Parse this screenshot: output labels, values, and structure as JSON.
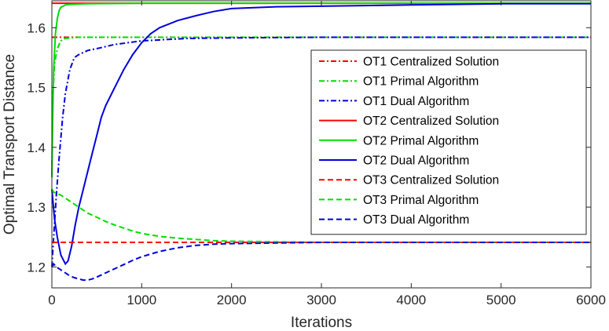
{
  "chart_data": {
    "type": "line",
    "title": "",
    "xlabel": "Iterations",
    "ylabel": "Optimal Transport Distance",
    "xlim": [
      0,
      6000
    ],
    "ylim": [
      1.165,
      1.645
    ],
    "xticks": [
      0,
      1000,
      2000,
      3000,
      4000,
      5000,
      6000
    ],
    "xtick_labels": [
      "0",
      "1000",
      "2000",
      "3000",
      "4000",
      "5000",
      "6000"
    ],
    "yticks": [
      1.2,
      1.3,
      1.4,
      1.5,
      1.6
    ],
    "ytick_labels": [
      "1.2",
      "1.3",
      "1.4",
      "1.5",
      "1.6"
    ],
    "grid": false,
    "legend_position": "right",
    "series": [
      {
        "name": "OT1 Centralized Solution",
        "color": "#ff0000",
        "dash": "dashdot",
        "x": [
          0,
          6000
        ],
        "y": [
          1.584,
          1.584
        ]
      },
      {
        "name": "OT1 Primal Algorithm",
        "color": "#00dd00",
        "dash": "dashdot",
        "x": [
          0,
          10,
          30,
          60,
          100,
          150,
          200,
          300,
          500,
          1000,
          2000,
          4000,
          6000
        ],
        "y": [
          1.35,
          1.48,
          1.54,
          1.565,
          1.578,
          1.582,
          1.583,
          1.584,
          1.584,
          1.584,
          1.584,
          1.584,
          1.584
        ]
      },
      {
        "name": "OT1 Dual Algorithm",
        "color": "#0000dd",
        "dash": "dashdot",
        "x": [
          0,
          20,
          50,
          80,
          120,
          150,
          200,
          250,
          300,
          400,
          500,
          700,
          1000,
          1500,
          2000,
          3000,
          4000,
          6000
        ],
        "y": [
          1.2,
          1.25,
          1.32,
          1.38,
          1.45,
          1.49,
          1.53,
          1.55,
          1.555,
          1.562,
          1.565,
          1.572,
          1.578,
          1.582,
          1.583,
          1.584,
          1.584,
          1.584
        ]
      },
      {
        "name": "OT2 Centralized Solution",
        "color": "#ff0000",
        "dash": "solid",
        "x": [
          0,
          6000
        ],
        "y": [
          1.641,
          1.641
        ]
      },
      {
        "name": "OT2 Primal Algorithm",
        "color": "#00dd00",
        "dash": "solid",
        "x": [
          0,
          10,
          20,
          40,
          60,
          80,
          100,
          150,
          200,
          400,
          1000,
          2000,
          4000,
          6000
        ],
        "y": [
          1.35,
          1.45,
          1.53,
          1.59,
          1.615,
          1.628,
          1.634,
          1.638,
          1.639,
          1.64,
          1.641,
          1.641,
          1.641,
          1.641
        ]
      },
      {
        "name": "OT2 Dual Algorithm",
        "color": "#0000dd",
        "dash": "solid",
        "x": [
          0,
          30,
          60,
          100,
          150,
          180,
          220,
          260,
          300,
          350,
          400,
          450,
          500,
          550,
          600,
          700,
          800,
          900,
          1000,
          1100,
          1200,
          1400,
          1600,
          1800,
          2000,
          2500,
          3000,
          4000,
          5000,
          6000
        ],
        "y": [
          1.33,
          1.28,
          1.25,
          1.22,
          1.205,
          1.21,
          1.235,
          1.27,
          1.3,
          1.33,
          1.36,
          1.39,
          1.42,
          1.45,
          1.47,
          1.5,
          1.53,
          1.555,
          1.575,
          1.59,
          1.6,
          1.612,
          1.62,
          1.627,
          1.632,
          1.635,
          1.636,
          1.638,
          1.64,
          1.64
        ]
      },
      {
        "name": "OT3 Centralized Solution",
        "color": "#ff0000",
        "dash": "dashed",
        "x": [
          0,
          6000
        ],
        "y": [
          1.241,
          1.241
        ]
      },
      {
        "name": "OT3 Primal Algorithm",
        "color": "#00dd00",
        "dash": "dashed",
        "x": [
          0,
          20,
          100,
          200,
          300,
          400,
          500,
          600,
          700,
          800,
          900,
          1000,
          1200,
          1400,
          1600,
          1800,
          2000,
          2500,
          3000,
          4000,
          6000
        ],
        "y": [
          1.33,
          1.325,
          1.32,
          1.31,
          1.3,
          1.29,
          1.283,
          1.276,
          1.27,
          1.265,
          1.26,
          1.256,
          1.251,
          1.248,
          1.246,
          1.244,
          1.243,
          1.242,
          1.241,
          1.241,
          1.241
        ]
      },
      {
        "name": "OT3 Dual Algorithm",
        "color": "#0000dd",
        "dash": "dashed",
        "x": [
          0,
          20,
          50,
          100,
          150,
          200,
          250,
          300,
          350,
          400,
          450,
          500,
          600,
          700,
          800,
          900,
          1000,
          1200,
          1400,
          1600,
          1800,
          2000,
          2500,
          3000,
          4000,
          6000
        ],
        "y": [
          1.2,
          1.205,
          1.2,
          1.195,
          1.19,
          1.185,
          1.182,
          1.18,
          1.178,
          1.178,
          1.18,
          1.183,
          1.19,
          1.197,
          1.204,
          1.211,
          1.217,
          1.226,
          1.232,
          1.236,
          1.238,
          1.239,
          1.24,
          1.241,
          1.241,
          1.241
        ]
      }
    ]
  }
}
